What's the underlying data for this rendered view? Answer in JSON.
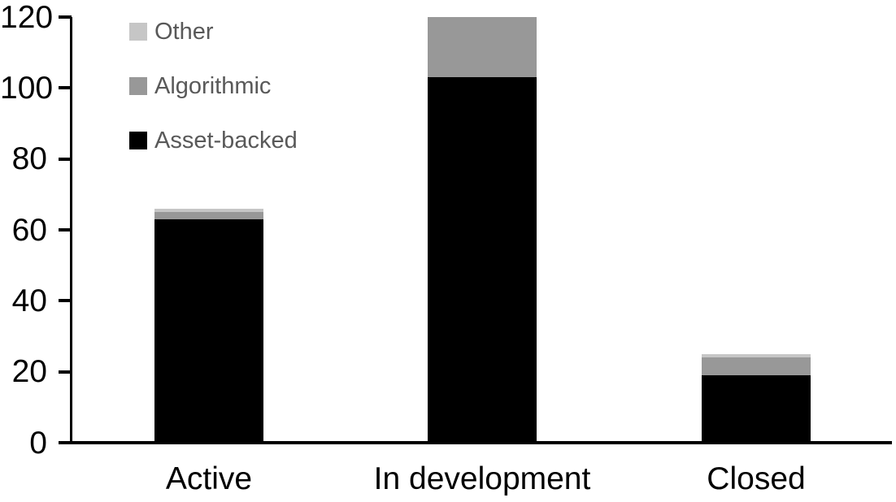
{
  "chart_data": {
    "type": "bar",
    "stacked": true,
    "title": "",
    "xlabel": "",
    "ylabel": "",
    "categories": [
      "Active",
      "In development",
      "Closed"
    ],
    "series": [
      {
        "name": "Asset-backed",
        "color": "#000000",
        "values": [
          63,
          103,
          19
        ]
      },
      {
        "name": "Algorithmic",
        "color": "#989898",
        "values": [
          2,
          17,
          5
        ]
      },
      {
        "name": "Other",
        "color": "#c6c6c6",
        "values": [
          1,
          0,
          1
        ]
      }
    ],
    "yticks": [
      0,
      20,
      40,
      60,
      80,
      100,
      120
    ],
    "ylim": [
      0,
      120
    ],
    "grid": false,
    "legend_position": "top-left",
    "legend": [
      {
        "label": "Other",
        "color": "#c6c6c6"
      },
      {
        "label": "Algorithmic",
        "color": "#989898"
      },
      {
        "label": "Asset-backed",
        "color": "#000000"
      }
    ],
    "colors": {
      "axis": "#000000",
      "tick_label_text": "#000000",
      "legend_text": "#595959",
      "background": "#ffffff"
    }
  }
}
